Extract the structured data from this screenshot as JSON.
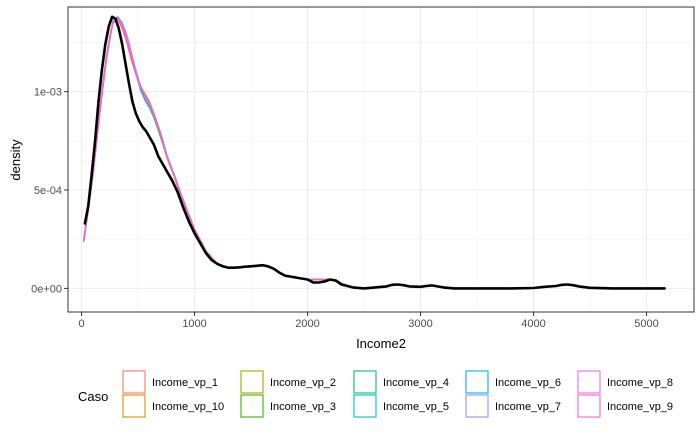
{
  "chart_data": {
    "type": "line",
    "title": "",
    "xlabel": "Income2",
    "ylabel": "density",
    "xlim": [
      -120,
      5420
    ],
    "ylim": [
      -0.00012,
      0.00143
    ],
    "x_ticks": [
      0,
      1000,
      2000,
      3000,
      4000,
      5000
    ],
    "x_tick_labels": [
      "0",
      "1000",
      "2000",
      "3000",
      "4000",
      "5000"
    ],
    "y_ticks": [
      0,
      0.0005,
      0.001
    ],
    "y_tick_labels": [
      "0e+00",
      "5e-04",
      "1e-03"
    ],
    "grid": true,
    "legend": {
      "title": "Caso",
      "position": "bottom",
      "entries": [
        {
          "label": "Income_vp_1",
          "color": "#F8766D"
        },
        {
          "label": "Income_vp_10",
          "color": "#D89000"
        },
        {
          "label": "Income_vp_2",
          "color": "#A3A500"
        },
        {
          "label": "Income_vp_3",
          "color": "#39B600"
        },
        {
          "label": "Income_vp_4",
          "color": "#00BF7D"
        },
        {
          "label": "Income_vp_5",
          "color": "#00BFC4"
        },
        {
          "label": "Income_vp_6",
          "color": "#00B0F6"
        },
        {
          "label": "Income_vp_7",
          "color": "#9590FF"
        },
        {
          "label": "Income_vp_8",
          "color": "#E76BF3"
        },
        {
          "label": "Income_vp_9",
          "color": "#FF62BC"
        }
      ]
    },
    "series": [
      {
        "color": "#000000",
        "x": [
          30,
          60,
          90,
          120,
          150,
          180,
          210,
          240,
          270,
          300,
          330,
          360,
          390,
          420,
          450,
          480,
          510,
          540,
          570,
          600,
          640,
          680,
          720,
          760,
          800,
          850,
          900,
          950,
          1000,
          1050,
          1100,
          1150,
          1200,
          1250,
          1300,
          1350,
          1400,
          1450,
          1500,
          1550,
          1600,
          1650,
          1700,
          1750,
          1800,
          1900,
          2000,
          2050,
          2100,
          2150,
          2200,
          2250,
          2300,
          2400,
          2500,
          2600,
          2700,
          2750,
          2800,
          2850,
          2900,
          3000,
          3050,
          3100,
          3150,
          3200,
          3300,
          3400,
          3600,
          3800,
          4000,
          4100,
          4200,
          4250,
          4300,
          4350,
          4400,
          4500,
          4700,
          4900,
          5160
        ],
        "y": [
          0.00033,
          0.00042,
          0.00058,
          0.00075,
          0.00095,
          0.00111,
          0.00124,
          0.00133,
          0.00138,
          0.00137,
          0.00132,
          0.00124,
          0.00114,
          0.00104,
          0.00095,
          0.00089,
          0.00085,
          0.00082,
          0.0008,
          0.00077,
          0.00073,
          0.00067,
          0.00063,
          0.00059,
          0.00055,
          0.00049,
          0.00041,
          0.00034,
          0.00028,
          0.00023,
          0.00018,
          0.000145,
          0.000125,
          0.000112,
          0.000105,
          0.000105,
          0.000107,
          0.00011,
          0.000112,
          0.000115,
          0.000118,
          0.000112,
          0.0001,
          8e-05,
          6.5e-05,
          5.5e-05,
          4.5e-05,
          3e-05,
          3e-05,
          3.5e-05,
          4.5e-05,
          4e-05,
          2e-05,
          5e-06,
          0.0,
          5e-06,
          1e-05,
          1.8e-05,
          2e-05,
          1.6e-05,
          1e-05,
          8e-06,
          1.2e-05,
          1.5e-05,
          1e-05,
          5e-06,
          0.0,
          0.0,
          0.0,
          0.0,
          2e-06,
          8e-06,
          1.2e-05,
          1.8e-05,
          2e-05,
          1.6e-05,
          1e-05,
          3e-06,
          0.0,
          0.0,
          0.0
        ]
      },
      {
        "color": "#F8766D",
        "x": [
          20,
          60,
          100,
          140,
          180,
          220,
          260,
          280,
          320,
          360,
          400,
          440,
          480,
          520,
          560,
          600,
          640,
          700,
          760,
          820,
          880,
          940,
          1000,
          1100,
          1200,
          1300,
          1400,
          1500,
          1600,
          1700,
          1800,
          2000,
          2200,
          2400
        ],
        "y": [
          0.00025,
          0.0004,
          0.00058,
          0.00079,
          0.00099,
          0.00118,
          0.00131,
          0.00135,
          0.00138,
          0.00133,
          0.00126,
          0.00117,
          0.00109,
          0.00102,
          0.00098,
          0.00094,
          0.00088,
          0.00078,
          0.00066,
          0.00057,
          0.00047,
          0.00038,
          0.0003,
          0.00019,
          0.000125,
          0.000105,
          0.000105,
          0.000112,
          0.000118,
          0.0001,
          6.5e-05,
          4.5e-05,
          4.5e-05,
          5e-06
        ]
      },
      {
        "color": "#D89000",
        "x": [
          20,
          60,
          100,
          140,
          180,
          220,
          260,
          280,
          320,
          360,
          400,
          440,
          480,
          520,
          560,
          600,
          640,
          700,
          760,
          820,
          880,
          940,
          1000,
          1100,
          1200,
          1300,
          1400,
          1500,
          1600,
          1700,
          1800,
          2000,
          2200,
          2400
        ],
        "y": [
          0.00024,
          0.0004,
          0.00057,
          0.00078,
          0.00098,
          0.00116,
          0.0013,
          0.00136,
          0.00137,
          0.00132,
          0.00125,
          0.00116,
          0.00109,
          0.00103,
          0.00099,
          0.00095,
          0.00089,
          0.00079,
          0.00067,
          0.00058,
          0.00048,
          0.00039,
          0.0003,
          0.00019,
          0.000125,
          0.000105,
          0.000105,
          0.000112,
          0.000119,
          0.0001,
          6.5e-05,
          4.5e-05,
          4.5e-05,
          5e-06
        ]
      },
      {
        "color": "#A3A500",
        "x": [
          20,
          60,
          100,
          140,
          180,
          220,
          260,
          280,
          320,
          360,
          400,
          440,
          480,
          520,
          560,
          600,
          640,
          700,
          760,
          820,
          880,
          940,
          1000,
          1100,
          1200,
          1300,
          1400,
          1500,
          1600,
          1700,
          1800,
          2000,
          2200,
          2400
        ],
        "y": [
          0.00025,
          0.00041,
          0.00059,
          0.0008,
          0.001,
          0.00118,
          0.00131,
          0.00136,
          0.00137,
          0.00133,
          0.00126,
          0.00118,
          0.0011,
          0.00103,
          0.00098,
          0.00094,
          0.00088,
          0.00078,
          0.00066,
          0.00057,
          0.00047,
          0.00038,
          0.0003,
          0.00019,
          0.000125,
          0.000105,
          0.000105,
          0.000112,
          0.000118,
          0.0001,
          6.5e-05,
          4.5e-05,
          4.5e-05,
          5e-06
        ]
      },
      {
        "color": "#39B600",
        "x": [
          20,
          60,
          100,
          140,
          180,
          220,
          260,
          280,
          320,
          360,
          400,
          440,
          480,
          520,
          560,
          600,
          640,
          700,
          760,
          820,
          880,
          940,
          1000,
          1100,
          1200,
          1300,
          1400,
          1500,
          1600,
          1700,
          1800,
          2000,
          2200,
          2400
        ],
        "y": [
          0.00025,
          0.0004,
          0.00058,
          0.00079,
          0.00099,
          0.00117,
          0.0013,
          0.00135,
          0.00137,
          0.00134,
          0.00127,
          0.00118,
          0.0011,
          0.00103,
          0.00098,
          0.00093,
          0.00087,
          0.00077,
          0.00066,
          0.00057,
          0.00047,
          0.00038,
          0.0003,
          0.00019,
          0.000125,
          0.000105,
          0.000105,
          0.000112,
          0.000118,
          0.0001,
          6.5e-05,
          4.5e-05,
          4.5e-05,
          5e-06
        ]
      },
      {
        "color": "#00BF7D",
        "x": [
          20,
          60,
          100,
          140,
          180,
          220,
          260,
          280,
          320,
          360,
          400,
          440,
          480,
          520,
          560,
          600,
          640,
          700,
          760,
          820,
          880,
          940,
          1000,
          1100,
          1200,
          1300,
          1400,
          1500,
          1600,
          1700,
          1800,
          2000,
          2200,
          2400
        ],
        "y": [
          0.00024,
          0.0004,
          0.00058,
          0.00079,
          0.00099,
          0.00117,
          0.0013,
          0.00136,
          0.00138,
          0.00134,
          0.00128,
          0.00119,
          0.00111,
          0.00103,
          0.00097,
          0.00092,
          0.00087,
          0.00077,
          0.00066,
          0.00057,
          0.00047,
          0.00038,
          0.0003,
          0.00019,
          0.000125,
          0.000105,
          0.000105,
          0.000112,
          0.000117,
          0.0001,
          6.5e-05,
          4.5e-05,
          4.5e-05,
          5e-06
        ]
      },
      {
        "color": "#00BFC4",
        "x": [
          20,
          60,
          100,
          140,
          180,
          220,
          260,
          280,
          320,
          360,
          400,
          440,
          480,
          520,
          560,
          600,
          640,
          700,
          760,
          820,
          880,
          940,
          1000,
          1100,
          1200,
          1300,
          1400,
          1500,
          1600,
          1700,
          1800,
          2000,
          2200,
          2400
        ],
        "y": [
          0.00025,
          0.00041,
          0.00058,
          0.00079,
          0.00099,
          0.00117,
          0.0013,
          0.00136,
          0.00138,
          0.00134,
          0.00127,
          0.00118,
          0.0011,
          0.00102,
          0.00096,
          0.00092,
          0.00087,
          0.00077,
          0.00066,
          0.00057,
          0.00047,
          0.00038,
          0.0003,
          0.00019,
          0.000125,
          0.000105,
          0.000105,
          0.000112,
          0.000117,
          0.0001,
          6.5e-05,
          4.5e-05,
          4.5e-05,
          5e-06
        ]
      },
      {
        "color": "#00B0F6",
        "x": [
          20,
          60,
          100,
          140,
          180,
          220,
          260,
          280,
          320,
          360,
          400,
          440,
          480,
          520,
          560,
          600,
          640,
          700,
          760,
          820,
          880,
          940,
          1000,
          1100,
          1200,
          1300,
          1400,
          1500,
          1600,
          1700,
          1800,
          2000,
          2200,
          2400
        ],
        "y": [
          0.00024,
          0.0004,
          0.00058,
          0.00079,
          0.00099,
          0.00117,
          0.0013,
          0.00136,
          0.00138,
          0.00135,
          0.00128,
          0.00119,
          0.0011,
          0.00101,
          0.00096,
          0.00092,
          0.00087,
          0.00077,
          0.00066,
          0.00057,
          0.00047,
          0.00038,
          0.0003,
          0.00019,
          0.000125,
          0.000105,
          0.000105,
          0.000112,
          0.000118,
          0.0001,
          6.5e-05,
          4.5e-05,
          4.5e-05,
          5e-06
        ]
      },
      {
        "color": "#9590FF",
        "x": [
          20,
          60,
          100,
          140,
          180,
          220,
          260,
          280,
          320,
          360,
          400,
          440,
          480,
          520,
          560,
          600,
          640,
          700,
          760,
          820,
          880,
          940,
          1000,
          1100,
          1200,
          1300,
          1400,
          1500,
          1600,
          1700,
          1800,
          2000,
          2200,
          2400
        ],
        "y": [
          0.00025,
          0.00041,
          0.00059,
          0.0008,
          0.001,
          0.00118,
          0.00131,
          0.00136,
          0.00138,
          0.00135,
          0.00129,
          0.0012,
          0.00111,
          0.00103,
          0.00097,
          0.00093,
          0.00088,
          0.00078,
          0.00067,
          0.00058,
          0.00048,
          0.00039,
          0.0003,
          0.00019,
          0.000125,
          0.000105,
          0.000105,
          0.000112,
          0.000119,
          0.0001,
          6.5e-05,
          4.5e-05,
          4.5e-05,
          5e-06
        ]
      },
      {
        "color": "#E76BF3",
        "x": [
          20,
          60,
          100,
          140,
          180,
          220,
          260,
          280,
          320,
          360,
          400,
          440,
          480,
          520,
          560,
          600,
          640,
          700,
          760,
          820,
          880,
          940,
          1000,
          1100,
          1200,
          1300,
          1400,
          1500,
          1600,
          1700,
          1800,
          2000,
          2200,
          2400
        ],
        "y": [
          0.00024,
          0.0004,
          0.00057,
          0.00078,
          0.00098,
          0.00116,
          0.0013,
          0.00135,
          0.00137,
          0.00134,
          0.00128,
          0.00119,
          0.0011,
          0.00103,
          0.00098,
          0.00094,
          0.00088,
          0.00078,
          0.00066,
          0.00057,
          0.00047,
          0.00038,
          0.0003,
          0.00019,
          0.000125,
          0.000105,
          0.000105,
          0.000112,
          0.000118,
          0.0001,
          6.5e-05,
          4.5e-05,
          4.5e-05,
          5e-06
        ]
      },
      {
        "color": "#FF62BC",
        "x": [
          20,
          60,
          100,
          140,
          180,
          220,
          260,
          280,
          320,
          360,
          400,
          440,
          480,
          520,
          560,
          600,
          640,
          700,
          760,
          820,
          880,
          940,
          1000,
          1100,
          1200,
          1300,
          1400,
          1500,
          1600,
          1700,
          1800,
          2000,
          2200,
          2400
        ],
        "y": [
          0.00025,
          0.0004,
          0.00058,
          0.00079,
          0.00099,
          0.00117,
          0.0013,
          0.00135,
          0.00137,
          0.00133,
          0.00126,
          0.00117,
          0.00109,
          0.00102,
          0.00098,
          0.00094,
          0.00088,
          0.00078,
          0.00066,
          0.00057,
          0.00047,
          0.00038,
          0.0003,
          0.00019,
          0.000125,
          0.000105,
          0.000105,
          0.000112,
          0.000118,
          0.0001,
          6.5e-05,
          4.5e-05,
          4.5e-05,
          5e-06
        ]
      }
    ]
  }
}
